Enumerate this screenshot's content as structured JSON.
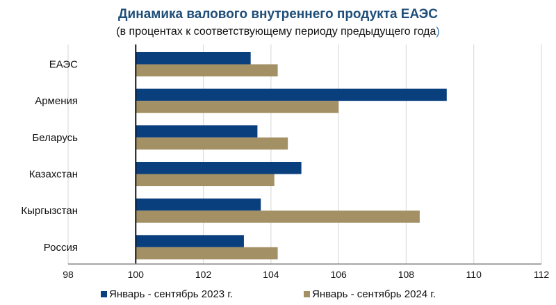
{
  "chart_data": {
    "type": "bar",
    "orientation": "horizontal",
    "title": "Динамика валового внутреннего продукта ЕАЭС",
    "subtitle_prefix": "(в процентах к соответствующему периоду предыдущего года",
    "subtitle_suffix": ")",
    "categories": [
      "ЕАЭС",
      "Армения",
      "Беларусь",
      "Казахстан",
      "Кыргызстан",
      "Россия"
    ],
    "series": [
      {
        "name": "Январь - сентябрь 2023 г.",
        "color": "#0a3f7e",
        "values": [
          103.4,
          109.2,
          103.6,
          104.9,
          103.7,
          103.2
        ]
      },
      {
        "name": "Январь - сентябрь 2024 г.",
        "color": "#a39064",
        "values": [
          104.2,
          106.0,
          104.5,
          104.1,
          108.4,
          104.2
        ]
      }
    ],
    "xlim": [
      98,
      112
    ],
    "xticks": [
      "98",
      "100",
      "102",
      "104",
      "106",
      "108",
      "110",
      "112"
    ],
    "baseline": 100,
    "grid": true,
    "legend_position": "bottom",
    "title_color": "#1f4e79"
  }
}
